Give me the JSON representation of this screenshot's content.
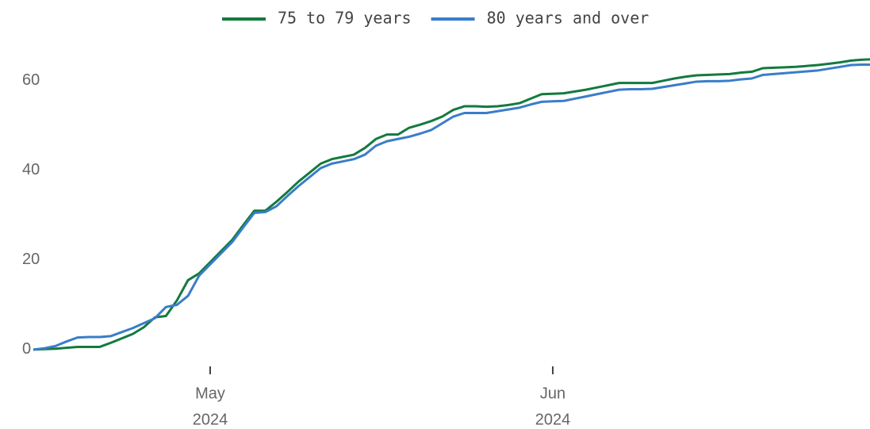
{
  "chart_data": {
    "type": "line",
    "xlim": [
      0,
      75.7
    ],
    "xticks": [
      {
        "value": 16,
        "label": [
          "May",
          "2024"
        ]
      },
      {
        "value": 47,
        "label": [
          "Jun",
          "2024"
        ]
      }
    ],
    "ylim": [
      -2.5,
      67.4
    ],
    "yticks": [
      0,
      20,
      40,
      60
    ],
    "grid": false,
    "legend": "top",
    "series": [
      {
        "name": "75 to 79 years",
        "color": "#137a3e",
        "values": [
          0,
          0.1,
          0.2,
          0.4,
          0.6,
          0.6,
          0.6,
          1.5,
          2.5,
          3.5,
          5,
          7.2,
          7.5,
          11,
          15.5,
          17,
          19.5,
          22,
          24.5,
          27.8,
          31,
          31,
          33,
          35.2,
          37.5,
          39.5,
          41.5,
          42.5,
          43,
          43.5,
          45,
          47,
          48,
          48,
          49.5,
          50.2,
          51,
          52,
          53.5,
          54.3,
          54.3,
          54.2,
          54.3,
          54.6,
          55,
          56,
          57,
          57.1,
          57.2,
          57.6,
          58,
          58.5,
          59,
          59.5,
          59.5,
          59.5,
          59.5,
          60,
          60.5,
          60.9,
          61.2,
          61.3,
          61.4,
          61.5,
          61.8,
          62,
          62.8,
          62.9,
          63,
          63.1,
          63.3,
          63.5,
          63.8,
          64.1,
          64.5,
          64.7,
          64.8
        ]
      },
      {
        "name": "80 years and over",
        "color": "#3a7dc9",
        "values": [
          0,
          0.3,
          0.8,
          1.8,
          2.7,
          2.8,
          2.8,
          3,
          3.9,
          4.8,
          5.9,
          7,
          9.5,
          10,
          12,
          16.5,
          19,
          21.5,
          24,
          27.3,
          30.5,
          30.7,
          32,
          34.3,
          36.5,
          38.5,
          40.5,
          41.5,
          42,
          42.5,
          43.5,
          45.5,
          46.5,
          47,
          47.5,
          48.2,
          49,
          50.5,
          52,
          52.8,
          52.8,
          52.8,
          53.2,
          53.6,
          54,
          54.7,
          55.3,
          55.4,
          55.5,
          56,
          56.5,
          57,
          57.5,
          58,
          58.1,
          58.1,
          58.2,
          58.6,
          59,
          59.4,
          59.8,
          59.9,
          59.9,
          60,
          60.3,
          60.5,
          61.3,
          61.5,
          61.7,
          61.9,
          62.1,
          62.3,
          62.7,
          63.1,
          63.5,
          63.6,
          63.6
        ]
      }
    ]
  }
}
